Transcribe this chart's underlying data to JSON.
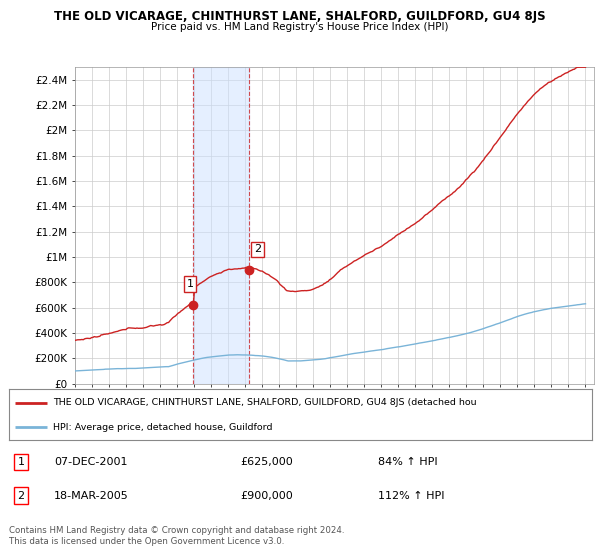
{
  "title": "THE OLD VICARAGE, CHINTHURST LANE, SHALFORD, GUILDFORD, GU4 8JS",
  "subtitle": "Price paid vs. HM Land Registry's House Price Index (HPI)",
  "ylim": [
    0,
    2500000
  ],
  "yticks": [
    0,
    200000,
    400000,
    600000,
    800000,
    1000000,
    1200000,
    1400000,
    1600000,
    1800000,
    2000000,
    2200000,
    2400000
  ],
  "ytick_labels": [
    "£0",
    "£200K",
    "£400K",
    "£600K",
    "£800K",
    "£1M",
    "£1.2M",
    "£1.4M",
    "£1.6M",
    "£1.8M",
    "£2M",
    "£2.2M",
    "£2.4M"
  ],
  "hpi_color": "#7ab4d8",
  "property_color": "#cc2222",
  "sale1_date_num": 2001.92,
  "sale1_price": 625000,
  "sale2_date_num": 2005.21,
  "sale2_price": 900000,
  "legend_property_text": "THE OLD VICARAGE, CHINTHURST LANE, SHALFORD, GUILDFORD, GU4 8JS (detached hou",
  "legend_hpi_text": "HPI: Average price, detached house, Guildford",
  "table_row1": [
    "1",
    "07-DEC-2001",
    "£625,000",
    "84% ↑ HPI"
  ],
  "table_row2": [
    "2",
    "18-MAR-2005",
    "£900,000",
    "112% ↑ HPI"
  ],
  "footer_text": "Contains HM Land Registry data © Crown copyright and database right 2024.\nThis data is licensed under the Open Government Licence v3.0.",
  "bg_color": "#ffffff",
  "grid_color": "#cccccc",
  "shade_color": "#cce0ff"
}
